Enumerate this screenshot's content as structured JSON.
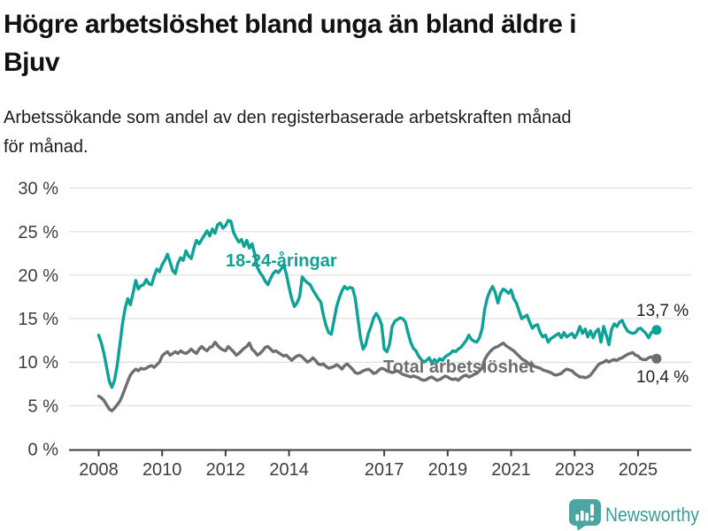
{
  "header": {
    "title_lines": [
      "Högre arbetslöshet bland unga än bland äldre i",
      "Bjuv"
    ],
    "subtitle_lines": [
      "Arbetssökande som andel av den registerbaserade arbetskraften månad",
      "för månad."
    ]
  },
  "footer": {
    "brand": "Newsworthy",
    "icon": "bar-chart-pin-icon"
  },
  "colors": {
    "youth_line": "#0da296",
    "total_line": "#6d6d72",
    "grid": "#d9d9d9",
    "axis": "#3d3d3d",
    "text": "#111111",
    "brand_icon": "#4ba6a1",
    "brand_text": "#3a9b97"
  },
  "chart_data": {
    "type": "line",
    "unit": "%",
    "frequency": "monthly",
    "start": "2008-01",
    "end": "2025-08",
    "grid": "horizontal",
    "ylim": [
      0,
      30
    ],
    "y_ticks": [
      0,
      5,
      10,
      15,
      20,
      25,
      30
    ],
    "y_tick_labels": [
      "0 %",
      "5 %",
      "10 %",
      "15 %",
      "20 %",
      "25 %",
      "30 %"
    ],
    "x_ticks": [
      2008,
      2010,
      2012,
      2014,
      2017,
      2019,
      2021,
      2023,
      2025
    ],
    "x_tick_labels": [
      "2008",
      "2010",
      "2012",
      "2014",
      "2017",
      "2019",
      "2021",
      "2023",
      "2025"
    ],
    "series": [
      {
        "name": "18-24-åringar",
        "color": "#0da296",
        "end_label": "13,7 %",
        "last_value": 13.7,
        "values": [
          13.1,
          12.2,
          11.0,
          9.4,
          7.8,
          7.1,
          7.9,
          9.6,
          12.0,
          14.4,
          16.2,
          17.3,
          16.6,
          17.9,
          19.4,
          18.4,
          18.8,
          18.9,
          19.5,
          19.0,
          18.9,
          19.9,
          20.7,
          20.4,
          21.2,
          21.7,
          22.4,
          21.5,
          20.5,
          20.2,
          21.4,
          22.0,
          21.7,
          22.8,
          22.2,
          21.9,
          23.1,
          24.0,
          23.6,
          24.1,
          24.6,
          25.1,
          24.5,
          25.3,
          24.8,
          25.8,
          26.0,
          25.4,
          25.7,
          26.3,
          26.2,
          24.9,
          24.3,
          23.8,
          24.1,
          23.3,
          24.0,
          23.1,
          23.6,
          22.4,
          20.9,
          20.3,
          19.9,
          19.3,
          18.9,
          19.6,
          20.2,
          20.5,
          20.3,
          20.7,
          21.2,
          20.1,
          18.6,
          17.3,
          16.4,
          16.8,
          17.5,
          19.8,
          19.4,
          19.1,
          18.9,
          18.3,
          17.8,
          17.3,
          16.9,
          15.4,
          14.2,
          13.4,
          13.2,
          14.8,
          16.4,
          17.4,
          18.2,
          18.7,
          18.4,
          18.6,
          18.5,
          17.4,
          15.1,
          12.8,
          11.5,
          12.0,
          13.3,
          14.1,
          15.1,
          15.6,
          15.1,
          14.3,
          11.5,
          11.2,
          12.0,
          14.1,
          14.7,
          14.9,
          15.1,
          15.0,
          14.6,
          13.4,
          12.3,
          11.6,
          11.3,
          10.7,
          10.3,
          10.0,
          10.2,
          10.5,
          9.9,
          10.3,
          10.0,
          10.4,
          10.2,
          10.6,
          10.8,
          11.0,
          11.3,
          11.2,
          11.5,
          11.7,
          12.1,
          12.5,
          13.1,
          12.6,
          12.4,
          12.3,
          12.8,
          13.8,
          16.1,
          17.4,
          18.2,
          18.7,
          18.0,
          16.8,
          17.9,
          18.4,
          18.2,
          17.9,
          18.3,
          17.3,
          16.8,
          15.9,
          15.0,
          15.2,
          15.4,
          14.6,
          13.9,
          14.2,
          14.3,
          13.4,
          12.9,
          13.1,
          12.3,
          12.7,
          12.9,
          13.1,
          13.3,
          12.8,
          13.4,
          12.9,
          13.1,
          13.3,
          12.8,
          13.3,
          14.1,
          13.3,
          13.8,
          12.9,
          13.6,
          12.8,
          13.5,
          13.8,
          12.3,
          14.1,
          13.1,
          12.0,
          13.8,
          14.4,
          14.1,
          14.6,
          14.8,
          14.1,
          13.6,
          13.4,
          13.3,
          13.4,
          13.8,
          13.9,
          13.6,
          13.3,
          12.8,
          13.4,
          13.6,
          13.7
        ]
      },
      {
        "name": "Total arbetslöshet",
        "color": "#6d6d72",
        "end_label": "10,4 %",
        "last_value": 10.4,
        "values": [
          6.1,
          5.9,
          5.6,
          5.1,
          4.6,
          4.4,
          4.7,
          5.1,
          5.5,
          6.2,
          7.0,
          7.8,
          8.5,
          8.9,
          9.2,
          9.0,
          9.3,
          9.2,
          9.3,
          9.5,
          9.6,
          9.4,
          9.7,
          10.0,
          10.7,
          11.0,
          11.2,
          10.8,
          11.0,
          11.2,
          11.0,
          11.3,
          11.1,
          11.0,
          11.2,
          11.5,
          11.2,
          11.0,
          11.5,
          11.8,
          11.5,
          11.3,
          11.7,
          11.8,
          12.3,
          11.9,
          11.6,
          11.4,
          11.3,
          11.8,
          11.5,
          11.2,
          10.8,
          11.0,
          11.3,
          11.6,
          11.8,
          12.2,
          11.5,
          11.2,
          10.8,
          11.0,
          11.3,
          11.7,
          11.8,
          11.5,
          11.2,
          11.3,
          11.1,
          10.9,
          10.7,
          10.8,
          10.5,
          10.2,
          10.5,
          10.7,
          10.8,
          10.6,
          10.3,
          10.0,
          10.2,
          10.5,
          10.2,
          9.8,
          9.7,
          9.8,
          9.5,
          9.3,
          9.4,
          9.5,
          9.7,
          9.5,
          9.2,
          9.6,
          9.8,
          9.5,
          9.2,
          8.8,
          8.7,
          8.8,
          9.0,
          9.1,
          9.2,
          9.0,
          8.7,
          8.8,
          9.1,
          9.3,
          9.2,
          9.0,
          8.9,
          8.8,
          8.9,
          9.0,
          8.8,
          8.6,
          8.5,
          8.4,
          8.3,
          8.4,
          8.3,
          8.2,
          8.0,
          7.9,
          8.0,
          8.2,
          8.3,
          8.1,
          7.9,
          8.0,
          8.2,
          8.4,
          8.3,
          8.1,
          8.0,
          8.1,
          7.9,
          8.2,
          8.4,
          8.5,
          8.3,
          8.4,
          8.6,
          8.7,
          9.0,
          9.3,
          10.3,
          10.8,
          11.2,
          11.5,
          11.7,
          11.8,
          12.0,
          12.2,
          11.9,
          11.7,
          11.5,
          11.3,
          11.0,
          10.7,
          10.4,
          10.2,
          10.0,
          9.7,
          9.6,
          9.5,
          9.4,
          9.3,
          9.1,
          9.0,
          8.9,
          8.8,
          8.6,
          8.5,
          8.6,
          8.7,
          9.0,
          9.2,
          9.1,
          9.0,
          8.7,
          8.5,
          8.3,
          8.3,
          8.2,
          8.3,
          8.5,
          8.9,
          9.3,
          9.7,
          9.9,
          10.0,
          10.2,
          10.0,
          10.2,
          10.3,
          10.2,
          10.4,
          10.5,
          10.7,
          10.9,
          11.0,
          11.1,
          10.8,
          10.7,
          10.4,
          10.3,
          10.3,
          10.5,
          10.6,
          10.5,
          10.4
        ]
      }
    ]
  }
}
